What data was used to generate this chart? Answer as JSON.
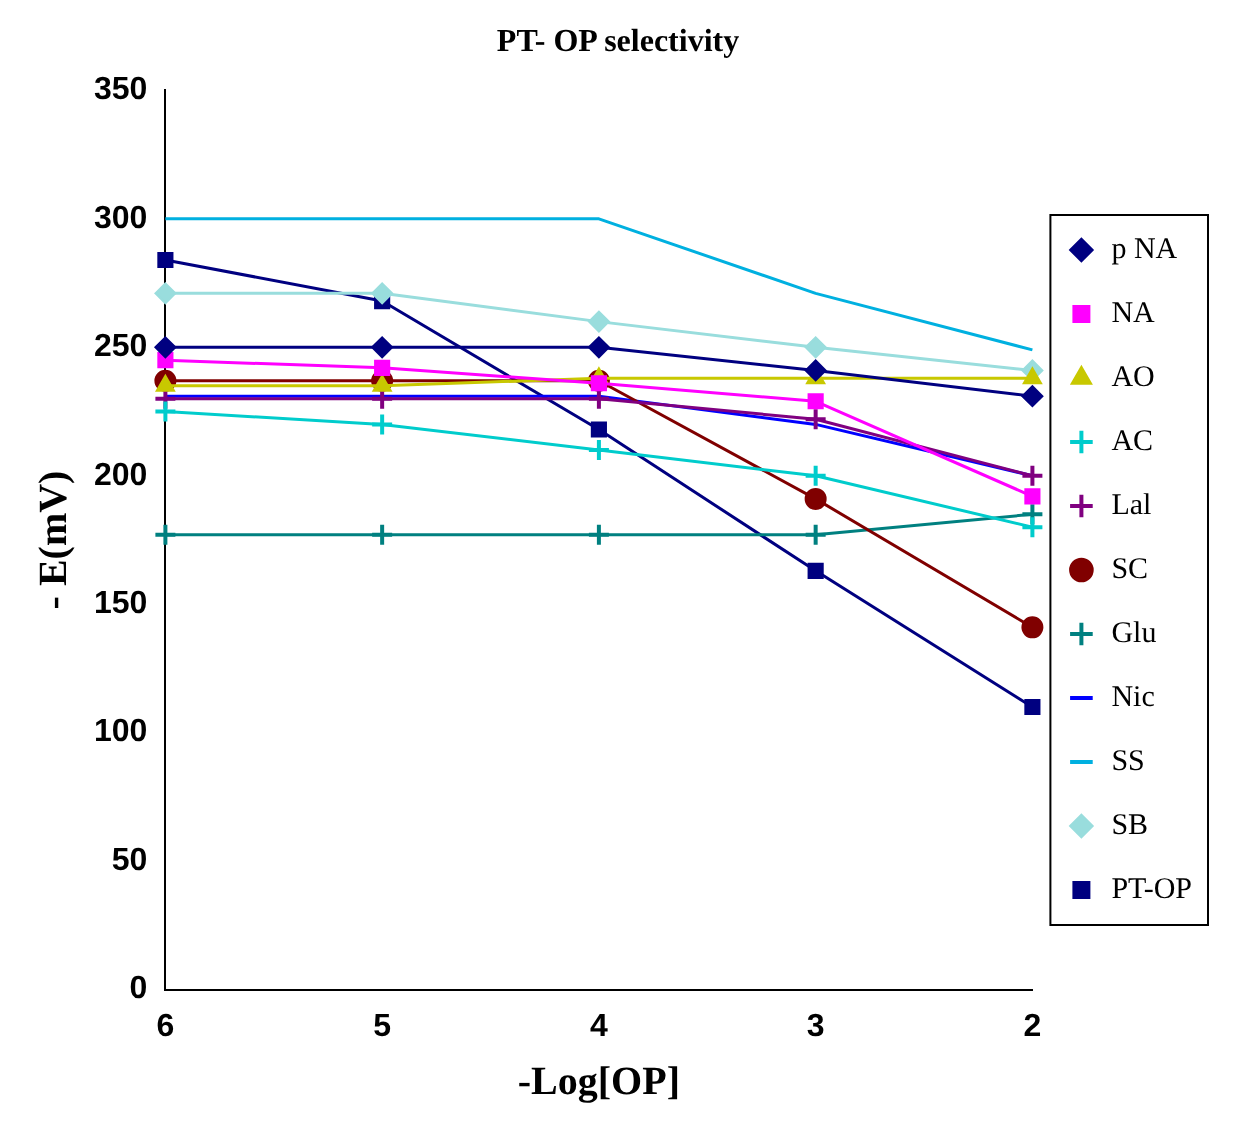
{
  "chart_data": {
    "type": "line",
    "title": "PT- OP selectivity",
    "xlabel": "-Log[OP]",
    "ylabel": "- E(mV)",
    "categories": [
      "6",
      "5",
      "4",
      "3",
      "2"
    ],
    "ylim": [
      0,
      350
    ],
    "yticks": [
      0,
      50,
      100,
      150,
      200,
      250,
      300,
      350
    ],
    "grid": false,
    "legend": "right",
    "line_style": "solid",
    "series": [
      {
        "name": "p NA",
        "color": "#000080",
        "marker": "diamond",
        "values": [
          250,
          250,
          250,
          241,
          231
        ]
      },
      {
        "name": "NA",
        "color": "#ff00ff",
        "marker": "square",
        "values": [
          245,
          242,
          236,
          229,
          192
        ]
      },
      {
        "name": "AO",
        "color": "#c8c800",
        "marker": "triangle",
        "values": [
          235,
          235,
          238,
          238,
          238
        ]
      },
      {
        "name": "AC",
        "color": "#00cccc",
        "marker": "cross",
        "values": [
          225,
          220,
          210,
          200,
          180
        ]
      },
      {
        "name": "Lal",
        "color": "#800080",
        "marker": "cross",
        "values": [
          230,
          230,
          230,
          222,
          200
        ]
      },
      {
        "name": "SC",
        "color": "#800000",
        "marker": "circle",
        "values": [
          237,
          237,
          237,
          191,
          141
        ]
      },
      {
        "name": "Glu",
        "color": "#008080",
        "marker": "cross",
        "values": [
          177,
          177,
          177,
          177,
          185
        ]
      },
      {
        "name": "Nic",
        "color": "#0000ff",
        "marker": "none",
        "values": [
          231,
          231,
          231,
          220,
          200
        ]
      },
      {
        "name": "SS",
        "color": "#00b0e0",
        "marker": "none",
        "values": [
          300,
          300,
          300,
          271,
          249
        ]
      },
      {
        "name": "SB",
        "color": "#99dddd",
        "marker": "diamond",
        "values": [
          271,
          271,
          260,
          250,
          241
        ]
      },
      {
        "name": "PT-OP",
        "color": "#000080",
        "marker": "square",
        "values": [
          284,
          268,
          218,
          163,
          110
        ]
      }
    ]
  }
}
